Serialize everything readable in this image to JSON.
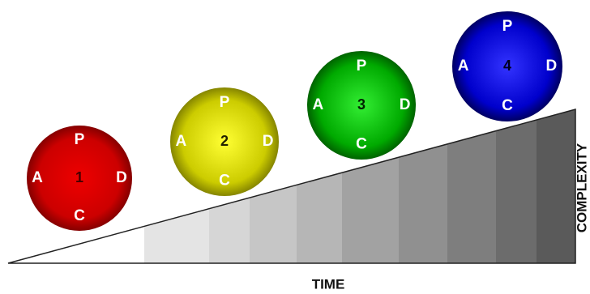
{
  "balls": [
    {
      "number": "1",
      "top": "P",
      "right": "D",
      "bottom": "C",
      "left": "A"
    },
    {
      "number": "2",
      "top": "P",
      "right": "D",
      "bottom": "C",
      "left": "A"
    },
    {
      "number": "3",
      "top": "P",
      "right": "D",
      "bottom": "C",
      "left": "A"
    },
    {
      "number": "4",
      "top": "P",
      "right": "D",
      "bottom": "C",
      "left": "A"
    }
  ],
  "x_axis_label": "TIME",
  "y_axis_label": "COMPLEXITY"
}
